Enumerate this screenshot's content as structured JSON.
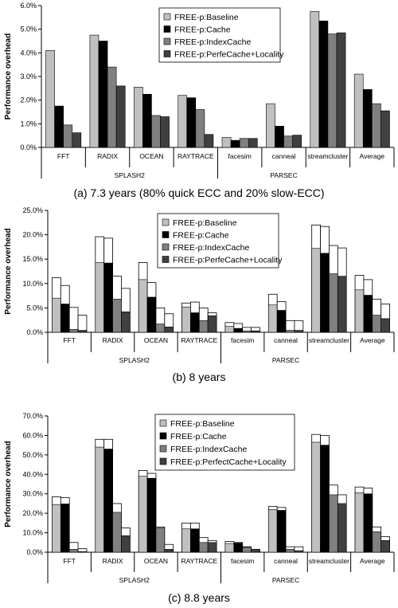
{
  "colors": [
    "#c0c0c0",
    "#000000",
    "#808080",
    "#404040"
  ],
  "legend_labels": {
    "a": [
      "FREE-p:Baseline",
      "FREE-p:Cache",
      "FREE-p:IndexCache",
      "FREE-p:PerfeCache+Locality"
    ],
    "b": [
      "FREE-p:Baseline",
      "FREE-p:Cache",
      "FREE-p:IndexCache",
      "FREE-p:PerfeCache+Locality"
    ],
    "c": [
      "FREE-p:Baseline",
      "FREE-p:Cache",
      "FREE-p:IndexCache",
      "FREE-p:PerfectCache+Locality"
    ]
  },
  "chart_data": [
    {
      "id": "a",
      "type": "bar",
      "title": "(a) 7.3 years (80% quick ECC and 20% slow-ECC)",
      "ylabel": "Performance overhead",
      "ylim": [
        0,
        6
      ],
      "y_ticks": [
        "0.0%",
        "1.0%",
        "2.0%",
        "3.0%",
        "4.0%",
        "5.0%",
        "6.0%"
      ],
      "categories": [
        "FFT",
        "RADIX",
        "OCEAN",
        "RAYTRACE",
        "facesim",
        "canneal",
        "streamcluster",
        "Average"
      ],
      "groups": [
        {
          "label": "SPLASH2",
          "span": [
            0,
            3
          ]
        },
        {
          "label": "PARSEC",
          "span": [
            4,
            6
          ]
        }
      ],
      "legend": "top-center",
      "series": [
        {
          "name": "FREE-p:Baseline",
          "values": [
            4.1,
            4.75,
            2.55,
            2.2,
            0.42,
            1.85,
            5.75,
            3.1
          ]
        },
        {
          "name": "FREE-p:Cache",
          "values": [
            1.75,
            4.5,
            2.25,
            2.1,
            0.3,
            0.9,
            5.35,
            2.45
          ]
        },
        {
          "name": "FREE-p:IndexCache",
          "values": [
            0.95,
            3.4,
            1.35,
            1.6,
            0.38,
            0.48,
            4.8,
            1.85
          ]
        },
        {
          "name": "FREE-p:PerfeCache+Locality",
          "values": [
            0.62,
            2.6,
            1.3,
            0.55,
            0.38,
            0.52,
            4.85,
            1.55
          ]
        }
      ]
    },
    {
      "id": "b",
      "type": "bar",
      "title": "(b) 8 years",
      "ylabel": "Performance overhead",
      "ylim": [
        0,
        25
      ],
      "y_ticks": [
        "0.0%",
        "5.0%",
        "10.0%",
        "15.0%",
        "20.0%",
        "25.0%"
      ],
      "categories": [
        "FFT",
        "RADIX",
        "OCEAN",
        "RAYTRACE",
        "facesim",
        "canneal",
        "streamcluster",
        "Average"
      ],
      "groups": [
        {
          "label": "SPLASH2",
          "span": [
            0,
            3
          ]
        },
        {
          "label": "PARSEC",
          "span": [
            4,
            6
          ]
        }
      ],
      "legend": "top-center",
      "series": [
        {
          "name": "FREE-p:Baseline",
          "values": [
            7.0,
            14.3,
            10.8,
            5.2,
            1.2,
            5.6,
            17.2,
            8.7
          ],
          "totals": [
            11.2,
            19.6,
            14.3,
            6.0,
            2.0,
            7.8,
            22.0,
            11.7
          ]
        },
        {
          "name": "FREE-p:Cache",
          "values": [
            5.8,
            14.2,
            7.2,
            4.0,
            0.8,
            4.5,
            16.2,
            7.6
          ],
          "totals": [
            9.6,
            19.3,
            10.2,
            6.2,
            1.8,
            6.3,
            21.7,
            10.8
          ]
        },
        {
          "name": "FREE-p:IndexCache",
          "values": [
            0.6,
            6.8,
            1.7,
            2.4,
            0.3,
            0.4,
            12.0,
            3.5
          ],
          "totals": [
            5.1,
            11.5,
            5.0,
            5.0,
            1.0,
            2.4,
            17.8,
            6.8
          ]
        },
        {
          "name": "FREE-p:PerfeCache+Locality",
          "values": [
            0.4,
            4.2,
            1.1,
            3.4,
            0.3,
            0.4,
            11.5,
            2.8
          ],
          "totals": [
            3.5,
            9.0,
            3.8,
            4.0,
            1.0,
            2.4,
            17.3,
            5.8
          ]
        }
      ]
    },
    {
      "id": "c",
      "type": "bar",
      "title": "(c) 8.8 years",
      "ylabel": "Performance overhead",
      "ylim": [
        0,
        70
      ],
      "y_ticks": [
        "0.0%",
        "10.0%",
        "20.0%",
        "30.0%",
        "40.0%",
        "50.0%",
        "60.0%",
        "70.0%"
      ],
      "categories": [
        "FFT",
        "RADIX",
        "OCEAN",
        "RAYTRACE",
        "facesim",
        "canneal",
        "streamcluster",
        "Average"
      ],
      "groups": [
        {
          "label": "SPLASH2",
          "span": [
            0,
            3
          ]
        },
        {
          "label": "PARSEC",
          "span": [
            4,
            6
          ]
        }
      ],
      "legend": "top-center",
      "series": [
        {
          "name": "FREE-p:Baseline",
          "values": [
            24.5,
            54.0,
            39.0,
            12.0,
            4.5,
            22.0,
            56.5,
            30.5
          ],
          "totals": [
            28.5,
            58.0,
            42.0,
            15.0,
            5.5,
            23.5,
            60.5,
            33.5
          ]
        },
        {
          "name": "FREE-p:Cache",
          "values": [
            24.8,
            53.0,
            38.0,
            12.0,
            4.7,
            21.5,
            55.0,
            30.0
          ],
          "totals": [
            28.0,
            58.0,
            40.5,
            15.0,
            5.0,
            23.0,
            60.0,
            33.0
          ]
        },
        {
          "name": "FREE-p:IndexCache",
          "values": [
            1.5,
            20.5,
            12.5,
            5.0,
            2.5,
            1.5,
            29.5,
            10.5
          ],
          "totals": [
            5.0,
            25.0,
            13.0,
            7.5,
            2.8,
            2.8,
            34.5,
            13.0
          ]
        },
        {
          "name": "FREE-p:PerfectCache+Locality",
          "values": [
            0.3,
            8.5,
            1.5,
            5.0,
            1.5,
            0.8,
            25.0,
            6.0
          ],
          "totals": [
            1.8,
            12.5,
            4.0,
            6.0,
            1.5,
            2.8,
            29.5,
            8.0
          ]
        }
      ]
    }
  ]
}
